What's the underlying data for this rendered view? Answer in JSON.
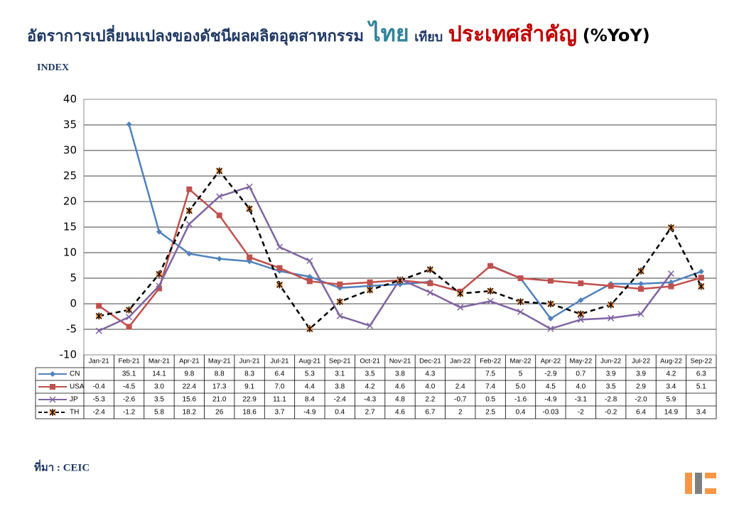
{
  "chart_data": {
    "type": "line",
    "title": [
      "อัตราการเปลี่ยนแปลงของดัชนีผลผลิตอุตสาหกรรม",
      "ไทย",
      "เทียบ",
      "ประเทศสำคัญ",
      "(%YoY)"
    ],
    "y_label": "INDEX",
    "source": "ที่มา : CEIC",
    "categories": [
      "Jan-21",
      "Feb-21",
      "Mar-21",
      "Apr-21",
      "May-21",
      "Jun-21",
      "Jul-21",
      "Aug-21",
      "Sep-21",
      "Oct-21",
      "Nov-21",
      "Dec-21",
      "Jan-22",
      "Feb-22",
      "Mar-22",
      "Apr-22",
      "May-22",
      "Jun-22",
      "Jul-22",
      "Aug-22",
      "Sep-22"
    ],
    "ylim": [
      -10,
      40
    ],
    "yticks": [
      -10,
      -5,
      0,
      5,
      10,
      15,
      20,
      25,
      30,
      35,
      40
    ],
    "grid": true,
    "series": [
      {
        "name": "CN",
        "color": "#4f81bd",
        "marker": "diamond",
        "dashed": false,
        "values": [
          null,
          35.1,
          14.1,
          9.8,
          8.8,
          8.3,
          6.4,
          5.3,
          3.1,
          3.5,
          3.8,
          4.3,
          null,
          7.5,
          5,
          -2.9,
          0.7,
          3.9,
          3.9,
          4.2,
          6.3
        ],
        "value_labels": [
          null,
          "35.1",
          "14.1",
          "9.8",
          "8.8",
          "8.3",
          "6.4",
          "5.3",
          "3.1",
          "3.5",
          "3.8",
          "4.3",
          null,
          "7.5",
          "5",
          "-2.9",
          "0.7",
          "3.9",
          "3.9",
          "4.2",
          "6.3"
        ]
      },
      {
        "name": "USA",
        "color": "#c0504d",
        "marker": "square",
        "dashed": false,
        "values": [
          -0.4,
          -4.5,
          3.0,
          22.4,
          17.3,
          9.1,
          7.0,
          4.4,
          3.8,
          4.2,
          4.6,
          4.0,
          2.4,
          7.4,
          5.0,
          4.5,
          4.0,
          3.5,
          2.9,
          3.4,
          5.1
        ],
        "value_labels": [
          "-0.4",
          "-4.5",
          "3.0",
          "22.4",
          "17.3",
          "9.1",
          "7.0",
          "4.4",
          "3.8",
          "4.2",
          "4.6",
          "4.0",
          "2.4",
          "7.4",
          "5.0",
          "4.5",
          "4.0",
          "3.5",
          "2.9",
          "3.4",
          "5.1"
        ]
      },
      {
        "name": "JP",
        "color": "#8064a2",
        "marker": "x",
        "dashed": false,
        "values": [
          -5.3,
          -2.6,
          3.5,
          15.6,
          21.0,
          22.9,
          11.1,
          8.4,
          -2.4,
          -4.3,
          4.8,
          2.2,
          -0.7,
          0.5,
          -1.6,
          -4.9,
          -3.1,
          -2.8,
          -2.0,
          5.9,
          null
        ],
        "value_labels": [
          "-5.3",
          "-2.6",
          "3.5",
          "15.6",
          "21.0",
          "22.9",
          "11.1",
          "8.4",
          "-2.4",
          "-4.3",
          "4.8",
          "2.2",
          "-0.7",
          "0.5",
          "-1.6",
          "-4.9",
          "-3.1",
          "-2.8",
          "-2.0",
          "5.9",
          null
        ]
      },
      {
        "name": "TH",
        "color": "#000000",
        "marker": "star",
        "marker_fill": "#f79646",
        "dashed": true,
        "values": [
          -2.4,
          -1.2,
          5.8,
          18.2,
          26,
          18.6,
          3.7,
          -4.9,
          0.4,
          2.7,
          4.6,
          6.7,
          2,
          2.5,
          0.4,
          -0.03,
          -2,
          -0.2,
          6.4,
          14.9,
          3.4
        ],
        "value_labels": [
          "-2.4",
          "-1.2",
          "5.8",
          "18.2",
          "26",
          "18.6",
          "3.7",
          "-4.9",
          "0.4",
          "2.7",
          "4.6",
          "6.7",
          "2",
          "2.5",
          "0.4",
          "-0.03",
          "-2",
          "-0.2",
          "6.4",
          "14.9",
          "3.4"
        ]
      }
    ]
  }
}
